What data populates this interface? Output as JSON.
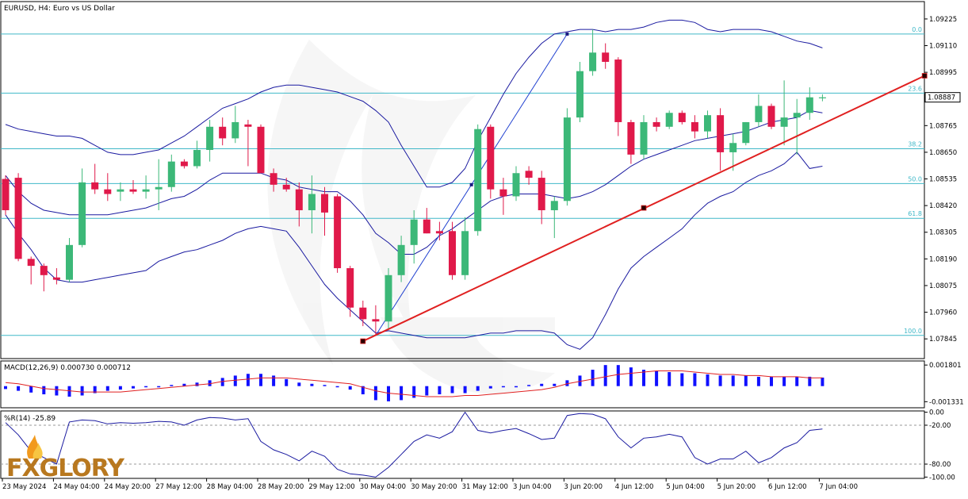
{
  "chart_data": [
    {
      "type": "candlestick",
      "title": "EURUSD, H4:  Euro vs US Dollar",
      "price_axis_ticks": [
        "1.09225",
        "1.09110",
        "1.08995",
        "1.08880",
        "1.08765",
        "1.08650",
        "1.08535",
        "1.08420",
        "1.08305",
        "1.08190",
        "1.08075",
        "1.07960",
        "1.07845"
      ],
      "current_price": "1.08887",
      "ylim": [
        1.0776,
        1.093
      ],
      "time_labels": [
        "23 May 2024",
        "24 May 04:00",
        "24 May 20:00",
        "27 May 12:00",
        "28 May 04:00",
        "28 May 20:00",
        "29 May 12:00",
        "30 May 04:00",
        "30 May 20:00",
        "31 May 12:00",
        "3 Jun 04:00",
        "3 Jun 20:00",
        "4 Jun 12:00",
        "5 Jun 04:00",
        "5 Jun 20:00",
        "6 Jun 12:00",
        "7 Jun 04:00"
      ],
      "time_label_index": [
        0,
        4,
        8,
        12,
        16,
        20,
        24,
        28,
        32,
        36,
        40,
        44,
        48,
        52,
        56,
        60,
        64
      ],
      "candles_ohlc": [
        [
          1.08535,
          1.0855,
          1.0838,
          1.084
        ],
        [
          1.0854,
          1.0856,
          1.0818,
          1.0819
        ],
        [
          1.0819,
          1.082,
          1.0808,
          1.0816
        ],
        [
          1.0816,
          1.0817,
          1.0805,
          1.0812
        ],
        [
          1.0811,
          1.0815,
          1.0808,
          1.081
        ],
        [
          1.081,
          1.0828,
          1.0809,
          1.0825
        ],
        [
          1.0825,
          1.0858,
          1.0824,
          1.0852
        ],
        [
          1.0852,
          1.086,
          1.0847,
          1.0849
        ],
        [
          1.0849,
          1.0856,
          1.0844,
          1.0847
        ],
        [
          1.0848,
          1.0852,
          1.0844,
          1.0849
        ],
        [
          1.0849,
          1.0853,
          1.0847,
          1.0848
        ],
        [
          1.0848,
          1.0855,
          1.0845,
          1.0849
        ],
        [
          1.0849,
          1.0862,
          1.084,
          1.085
        ],
        [
          1.085,
          1.0864,
          1.0848,
          1.0861
        ],
        [
          1.0861,
          1.0862,
          1.0858,
          1.0859
        ],
        [
          1.0859,
          1.087,
          1.0858,
          1.0866
        ],
        [
          1.0866,
          1.0879,
          1.0861,
          1.0876
        ],
        [
          1.0876,
          1.088,
          1.0868,
          1.0871
        ],
        [
          1.0871,
          1.0885,
          1.0869,
          1.0878
        ],
        [
          1.0877,
          1.0879,
          1.0859,
          1.0876
        ],
        [
          1.0876,
          1.0877,
          1.0857,
          1.0856
        ],
        [
          1.0856,
          1.0858,
          1.0848,
          1.0851
        ],
        [
          1.0851,
          1.0854,
          1.0848,
          1.0849
        ],
        [
          1.0849,
          1.0852,
          1.0833,
          1.084
        ],
        [
          1.084,
          1.0855,
          1.083,
          1.0847
        ],
        [
          1.0847,
          1.085,
          1.0829,
          1.0839
        ],
        [
          1.0846,
          1.0847,
          1.0813,
          1.0815
        ],
        [
          1.0815,
          1.0816,
          1.0794,
          1.0798
        ],
        [
          1.0798,
          1.0801,
          1.079,
          1.0793
        ],
        [
          1.0793,
          1.0799,
          1.0786,
          1.0792
        ],
        [
          1.0792,
          1.0815,
          1.0789,
          1.0812
        ],
        [
          1.0812,
          1.0829,
          1.0809,
          1.0825
        ],
        [
          1.0825,
          1.084,
          1.0817,
          1.0836
        ],
        [
          1.0836,
          1.0841,
          1.083,
          1.083
        ],
        [
          1.0831,
          1.0835,
          1.0827,
          1.083
        ],
        [
          1.0831,
          1.0835,
          1.081,
          1.0812
        ],
        [
          1.0812,
          1.0837,
          1.081,
          1.0831
        ],
        [
          1.0831,
          1.0877,
          1.0829,
          1.0875
        ],
        [
          1.0876,
          1.0877,
          1.0845,
          1.0849
        ],
        [
          1.0849,
          1.0854,
          1.0838,
          1.0846
        ],
        [
          1.0846,
          1.0859,
          1.0844,
          1.0856
        ],
        [
          1.0857,
          1.0859,
          1.0851,
          1.0854
        ],
        [
          1.0854,
          1.0857,
          1.0834,
          1.084
        ],
        [
          1.084,
          1.0846,
          1.0828,
          1.0844
        ],
        [
          1.0844,
          1.0884,
          1.0842,
          1.088
        ],
        [
          1.088,
          1.0904,
          1.0878,
          1.09
        ],
        [
          1.09,
          1.0918,
          1.0898,
          1.0908
        ],
        [
          1.0908,
          1.0912,
          1.0901,
          1.0904
        ],
        [
          1.0905,
          1.0906,
          1.0872,
          1.0878
        ],
        [
          1.0878,
          1.0879,
          1.086,
          1.0864
        ],
        [
          1.0864,
          1.0881,
          1.0862,
          1.0878
        ],
        [
          1.0878,
          1.088,
          1.0874,
          1.0876
        ],
        [
          1.0876,
          1.0883,
          1.0875,
          1.0882
        ],
        [
          1.0882,
          1.0883,
          1.0877,
          1.0878
        ],
        [
          1.0878,
          1.0881,
          1.0871,
          1.0874
        ],
        [
          1.0874,
          1.0883,
          1.0871,
          1.0881
        ],
        [
          1.0881,
          1.0884,
          1.0857,
          1.0865
        ],
        [
          1.0865,
          1.0873,
          1.0857,
          1.0869
        ],
        [
          1.0869,
          1.0878,
          1.0868,
          1.0878
        ],
        [
          1.0878,
          1.089,
          1.0876,
          1.0885
        ],
        [
          1.0885,
          1.0886,
          1.0875,
          1.0876
        ],
        [
          1.0876,
          1.0896,
          1.0868,
          1.088
        ],
        [
          1.088,
          1.0888,
          1.0864,
          1.0882
        ],
        [
          1.0882,
          1.0893,
          1.0879,
          1.08887
        ],
        [
          1.08887,
          1.089,
          1.0887,
          1.08887
        ]
      ],
      "colors": {
        "bull": "#3cb878",
        "bear": "#e0194a",
        "band": "#1a1aa0",
        "trendline": "#e02020",
        "fib": "#40b8c8"
      },
      "bollinger_upper": [
        1.0877,
        1.0875,
        1.0874,
        1.0873,
        1.0872,
        1.0872,
        1.0871,
        1.0868,
        1.0865,
        1.0864,
        1.0864,
        1.0865,
        1.0866,
        1.0869,
        1.0872,
        1.0876,
        1.088,
        1.0884,
        1.0886,
        1.0888,
        1.0891,
        1.0893,
        1.0894,
        1.0894,
        1.0893,
        1.0892,
        1.0891,
        1.0889,
        1.0887,
        1.0883,
        1.0878,
        1.0868,
        1.0859,
        1.085,
        1.085,
        1.0852,
        1.0858,
        1.087,
        1.088,
        1.089,
        1.0899,
        1.0906,
        1.0912,
        1.0916,
        1.0917,
        1.0918,
        1.0918,
        1.0917,
        1.0918,
        1.0918,
        1.0919,
        1.0921,
        1.0922,
        1.0922,
        1.0921,
        1.0918,
        1.0917,
        1.0918,
        1.0918,
        1.0918,
        1.0917,
        1.0915,
        1.0913,
        1.0912,
        1.091
      ],
      "bollinger_middle": [
        1.0855,
        1.0848,
        1.0843,
        1.084,
        1.0839,
        1.0838,
        1.0838,
        1.0838,
        1.0838,
        1.0839,
        1.084,
        1.0841,
        1.0843,
        1.0845,
        1.0846,
        1.0849,
        1.0853,
        1.0856,
        1.0856,
        1.0856,
        1.0856,
        1.0854,
        1.0853,
        1.085,
        1.0849,
        1.0848,
        1.0848,
        1.0844,
        1.0838,
        1.083,
        1.0826,
        1.0821,
        1.0821,
        1.0824,
        1.0829,
        1.0832,
        1.0836,
        1.084,
        1.0844,
        1.0846,
        1.0847,
        1.0847,
        1.0847,
        1.0846,
        1.0845,
        1.0846,
        1.0848,
        1.0851,
        1.0855,
        1.0859,
        1.0862,
        1.0864,
        1.0866,
        1.0868,
        1.087,
        1.0871,
        1.0872,
        1.0873,
        1.0874,
        1.0876,
        1.0878,
        1.0879,
        1.088,
        1.0883,
        1.0882
      ],
      "bollinger_lower": [
        1.0838,
        1.083,
        1.0823,
        1.0815,
        1.081,
        1.0809,
        1.0809,
        1.081,
        1.0811,
        1.0812,
        1.0813,
        1.0814,
        1.0818,
        1.082,
        1.0822,
        1.0823,
        1.0825,
        1.0827,
        1.083,
        1.0832,
        1.0833,
        1.0832,
        1.0831,
        1.0824,
        1.0816,
        1.0808,
        1.0802,
        1.0797,
        1.0792,
        1.0787,
        1.0788,
        1.0787,
        1.0786,
        1.0785,
        1.0785,
        1.0785,
        1.0785,
        1.0786,
        1.0787,
        1.0787,
        1.0788,
        1.0788,
        1.0788,
        1.0787,
        1.0782,
        1.078,
        1.0785,
        1.0795,
        1.0806,
        1.0815,
        1.082,
        1.0824,
        1.0828,
        1.0832,
        1.0838,
        1.0843,
        1.0846,
        1.0848,
        1.0852,
        1.0855,
        1.0857,
        1.086,
        1.0865,
        1.0858,
        1.0859
      ],
      "fibonacci_levels": [
        {
          "label": "0.0",
          "price": 1.0916
        },
        {
          "label": "23.6",
          "price": 1.08905
        },
        {
          "label": "38.2",
          "price": 1.08665
        },
        {
          "label": "50.0",
          "price": 1.08515
        },
        {
          "label": "61.8",
          "price": 1.08365
        },
        {
          "label": "100.0",
          "price": 1.0786
        }
      ],
      "fib_line": {
        "from": [
          29,
          1.0786
        ],
        "to": [
          44,
          1.0916
        ]
      },
      "trendline": {
        "from": [
          28,
          1.07835
        ],
        "mid": [
          50,
          1.0841
        ],
        "to": [
          72,
          1.0898
        ]
      }
    },
    {
      "type": "bar",
      "title": "MACD(12,26,9) 0.000730 0.000712",
      "axis_ticks": [
        "0.001801",
        "-0.001331"
      ],
      "ylim": [
        -0.00185,
        0.00215
      ],
      "histogram": [
        -0.00025,
        -0.0004,
        -0.00055,
        -0.0007,
        -0.0008,
        -0.0009,
        -0.0008,
        -0.0006,
        -0.0004,
        -0.0003,
        -0.0002,
        -0.0001,
        0,
        0.0001,
        0.0002,
        0.0003,
        0.0005,
        0.0007,
        0.0009,
        0.00105,
        0.00105,
        0.0009,
        0.0006,
        0.0003,
        0.0002,
        0.0001,
        -0.0001,
        -0.0003,
        -0.0007,
        -0.0012,
        -0.0013,
        -0.0012,
        -0.001,
        -0.0008,
        -0.0007,
        -0.0006,
        -0.0006,
        -0.0004,
        -0.0002,
        -0.0001,
        0,
        0.0001,
        0.0002,
        0.0002,
        0.0005,
        0.0009,
        0.0014,
        0.0018,
        0.0018,
        0.0016,
        0.0014,
        0.0013,
        0.0012,
        0.0011,
        0.0011,
        0.001,
        0.0009,
        0.0009,
        0.0009,
        0.0008,
        0.0008,
        0.0008,
        0.0008,
        0.0008,
        0.00073
      ],
      "signal": [
        0.0003,
        0.0002,
        0.0,
        -0.0002,
        -0.0003,
        -0.0004,
        -0.0005,
        -0.0005,
        -0.0005,
        -0.0005,
        -0.0004,
        -0.0003,
        -0.0002,
        -0.0001,
        0.0,
        0.0001,
        0.0002,
        0.0004,
        0.0005,
        0.0006,
        0.0007,
        0.0007,
        0.0007,
        0.0006,
        0.0005,
        0.0004,
        0.0003,
        0.0002,
        -0.0001,
        -0.0004,
        -0.0006,
        -0.0007,
        -0.0008,
        -0.0009,
        -0.0009,
        -0.0009,
        -0.0008,
        -0.0008,
        -0.0007,
        -0.0006,
        -0.0005,
        -0.0004,
        -0.0003,
        -0.0001,
        0.0002,
        0.0004,
        0.0006,
        0.0008,
        0.001,
        0.0011,
        0.0012,
        0.0013,
        0.0013,
        0.0013,
        0.0012,
        0.0011,
        0.001,
        0.001,
        0.0009,
        0.0009,
        0.0008,
        0.0008,
        0.0008,
        0.0007,
        0.000712
      ]
    },
    {
      "type": "line",
      "title": "%R(14) -25.89",
      "axis_ticks": [
        "0.00",
        "-20.00",
        "-80.00",
        "-100.00"
      ],
      "ylim": [
        -102,
        2
      ],
      "values": [
        -16,
        -35,
        -60,
        -70,
        -80,
        -15,
        -12,
        -13,
        -18,
        -16,
        -17,
        -16,
        -14,
        -15,
        -20,
        -12,
        -8,
        -9,
        -12,
        -10,
        -45,
        -58,
        -65,
        -75,
        -60,
        -68,
        -88,
        -95,
        -97,
        -100,
        -85,
        -65,
        -45,
        -35,
        -40,
        -30,
        0,
        -28,
        -32,
        -28,
        -25,
        -33,
        -42,
        -40,
        -5,
        -2,
        -3,
        -10,
        -38,
        -55,
        -40,
        -38,
        -34,
        -38,
        -70,
        -80,
        -72,
        -72,
        -60,
        -78,
        -70,
        -55,
        -47,
        -28,
        -25.89
      ]
    }
  ],
  "watermark": "FXGLORY"
}
